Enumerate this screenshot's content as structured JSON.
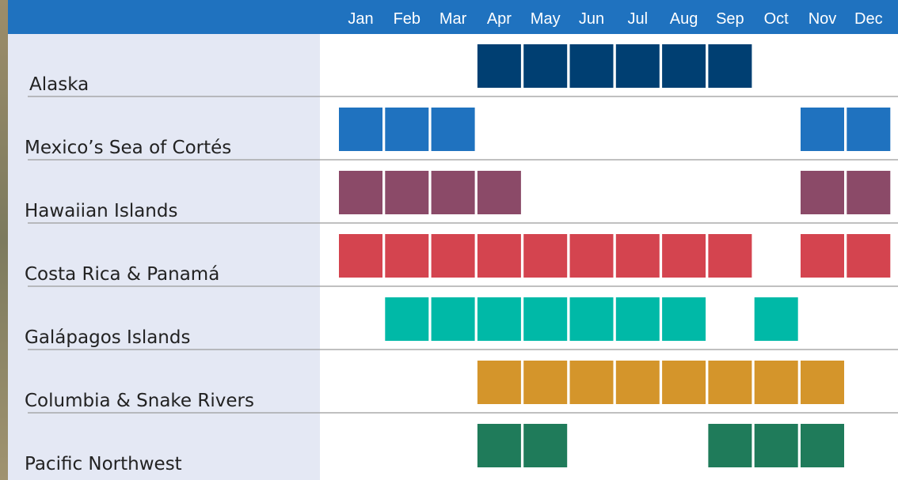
{
  "months": [
    "Jan",
    "Feb",
    "Mar",
    "Apr",
    "May",
    "Jun",
    "Jul",
    "Aug",
    "Sep",
    "Oct",
    "Nov",
    "Dec"
  ],
  "regions": [
    {
      "name": "Alaska",
      "color": "#003f72",
      "active": [
        false,
        false,
        false,
        true,
        true,
        true,
        true,
        true,
        true,
        false,
        false,
        false
      ]
    },
    {
      "name": "Mexico’s Sea of Cortés",
      "color": "#1f72bf",
      "active": [
        true,
        true,
        true,
        false,
        false,
        false,
        false,
        false,
        false,
        false,
        true,
        true
      ]
    },
    {
      "name": "Hawaiian Islands",
      "color": "#8b4a68",
      "active": [
        true,
        true,
        true,
        true,
        false,
        false,
        false,
        false,
        false,
        false,
        true,
        true
      ]
    },
    {
      "name": "Costa Rica & Panamá",
      "color": "#d4444f",
      "active": [
        true,
        true,
        true,
        true,
        true,
        true,
        true,
        true,
        true,
        false,
        true,
        true
      ]
    },
    {
      "name": "Galápagos Islands",
      "color": "#00b9a7",
      "active": [
        false,
        true,
        true,
        true,
        true,
        true,
        true,
        true,
        false,
        true,
        false,
        false
      ]
    },
    {
      "name": "Columbia & Snake Rivers",
      "color": "#d4952b",
      "active": [
        false,
        false,
        false,
        true,
        true,
        true,
        true,
        true,
        true,
        true,
        true,
        false
      ]
    },
    {
      "name": "Pacific Northwest",
      "color": "#1f7b5a",
      "active": [
        false,
        false,
        false,
        true,
        true,
        false,
        false,
        false,
        true,
        true,
        true,
        false
      ]
    }
  ]
}
